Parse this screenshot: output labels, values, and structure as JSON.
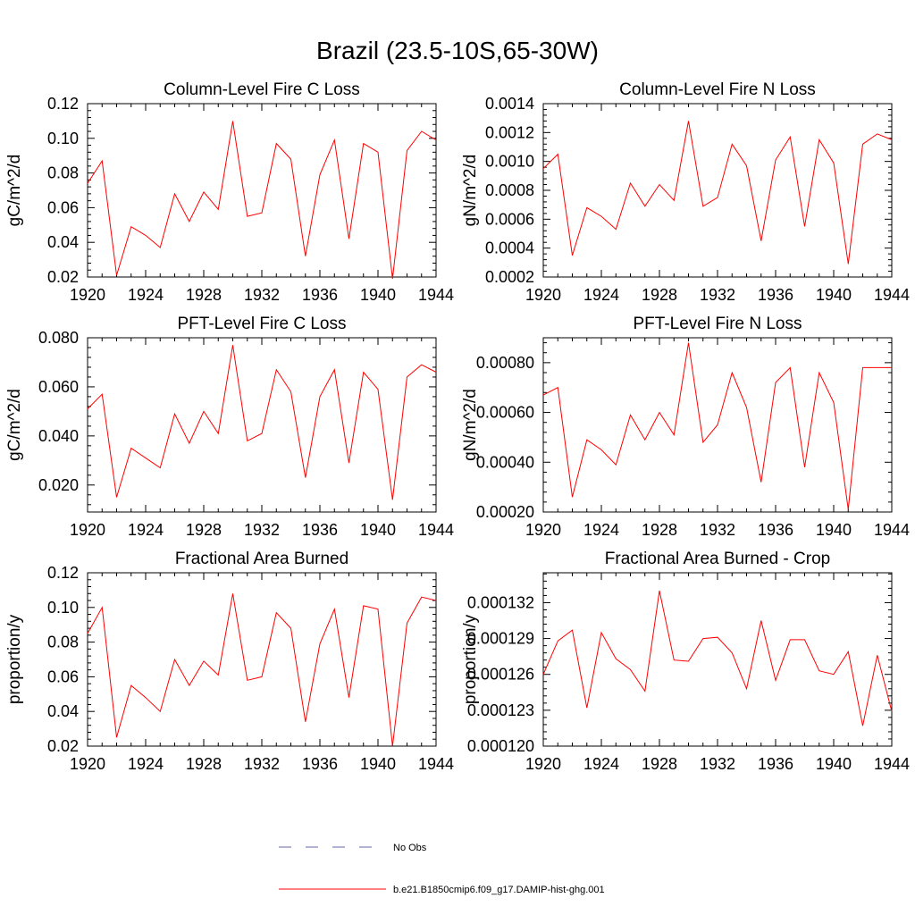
{
  "figure": {
    "title": "Brazil (23.5-10S,65-30W)"
  },
  "legend": [
    {
      "label": "No Obs",
      "color": "#6666aa",
      "dash": true
    },
    {
      "label": "b.e21.B1850cmip6.f09_g17.DAMIP-hist-ghg.001",
      "color": "#ff0000",
      "dash": false
    }
  ],
  "chart_data": [
    {
      "type": "line",
      "title": "Column-Level Fire C Loss",
      "ylabel": "gC/m^2/d",
      "xlim": [
        1920,
        1944
      ],
      "ylim": [
        0.02,
        0.12
      ],
      "xticks": [
        1920,
        1924,
        1928,
        1932,
        1936,
        1940,
        1944
      ],
      "xtick_labels": [
        "1920",
        "1924",
        "1928",
        "1932",
        "1936",
        "1940",
        "1944"
      ],
      "yticks": [
        0.02,
        0.04,
        0.06,
        0.08,
        0.1,
        0.12
      ],
      "ytick_labels": [
        "0.02",
        "0.04",
        "0.06",
        "0.08",
        "0.10",
        "0.12"
      ],
      "x": [
        1920,
        1921,
        1922,
        1923,
        1924,
        1925,
        1926,
        1927,
        1928,
        1929,
        1930,
        1931,
        1932,
        1933,
        1934,
        1935,
        1936,
        1937,
        1938,
        1939,
        1940,
        1941,
        1942,
        1943,
        1944
      ],
      "series": [
        {
          "name": "b.e21.B1850cmip6.f09_g17.DAMIP-hist-ghg.001",
          "color": "#ff0000",
          "values": [
            0.074,
            0.087,
            0.021,
            0.049,
            0.044,
            0.037,
            0.068,
            0.052,
            0.069,
            0.059,
            0.11,
            0.055,
            0.057,
            0.097,
            0.088,
            0.032,
            0.079,
            0.099,
            0.042,
            0.097,
            0.092,
            0.019,
            0.093,
            0.104,
            0.099
          ]
        }
      ]
    },
    {
      "type": "line",
      "title": "Column-Level Fire N Loss",
      "ylabel": "gN/m^2/d",
      "xlim": [
        1920,
        1944
      ],
      "ylim": [
        0.0002,
        0.0014
      ],
      "xticks": [
        1920,
        1924,
        1928,
        1932,
        1936,
        1940,
        1944
      ],
      "xtick_labels": [
        "1920",
        "1924",
        "1928",
        "1932",
        "1936",
        "1940",
        "1944"
      ],
      "yticks": [
        0.0002,
        0.0004,
        0.0006,
        0.0008,
        0.001,
        0.0012,
        0.0014
      ],
      "ytick_labels": [
        "0.0002",
        "0.0004",
        "0.0006",
        "0.0008",
        "0.0010",
        "0.0012",
        "0.0014"
      ],
      "x": [
        1920,
        1921,
        1922,
        1923,
        1924,
        1925,
        1926,
        1927,
        1928,
        1929,
        1930,
        1931,
        1932,
        1933,
        1934,
        1935,
        1936,
        1937,
        1938,
        1939,
        1940,
        1941,
        1942,
        1943,
        1944
      ],
      "series": [
        {
          "name": "b.e21.B1850cmip6.f09_g17.DAMIP-hist-ghg.001",
          "color": "#ff0000",
          "values": [
            0.00095,
            0.00105,
            0.00035,
            0.00068,
            0.00062,
            0.00053,
            0.00085,
            0.00069,
            0.00084,
            0.00073,
            0.00128,
            0.00069,
            0.00075,
            0.00112,
            0.00097,
            0.00045,
            0.00101,
            0.00117,
            0.00055,
            0.00115,
            0.00099,
            0.00029,
            0.00112,
            0.00119,
            0.00115
          ]
        }
      ]
    },
    {
      "type": "line",
      "title": "PFT-Level Fire C Loss",
      "ylabel": "gC/m^2/d",
      "xlim": [
        1920,
        1944
      ],
      "ylim": [
        0.009,
        0.08
      ],
      "xticks": [
        1920,
        1924,
        1928,
        1932,
        1936,
        1940,
        1944
      ],
      "xtick_labels": [
        "1920",
        "1924",
        "1928",
        "1932",
        "1936",
        "1940",
        "1944"
      ],
      "yticks": [
        0.02,
        0.04,
        0.06,
        0.08
      ],
      "ytick_labels": [
        "0.020",
        "0.040",
        "0.060",
        "0.080"
      ],
      "x": [
        1920,
        1921,
        1922,
        1923,
        1924,
        1925,
        1926,
        1927,
        1928,
        1929,
        1930,
        1931,
        1932,
        1933,
        1934,
        1935,
        1936,
        1937,
        1938,
        1939,
        1940,
        1941,
        1942,
        1943,
        1944
      ],
      "series": [
        {
          "name": "b.e21.B1850cmip6.f09_g17.DAMIP-hist-ghg.001",
          "color": "#ff0000",
          "values": [
            0.051,
            0.057,
            0.015,
            0.035,
            0.031,
            0.027,
            0.049,
            0.037,
            0.05,
            0.041,
            0.077,
            0.038,
            0.041,
            0.067,
            0.058,
            0.023,
            0.056,
            0.067,
            0.029,
            0.066,
            0.059,
            0.014,
            0.064,
            0.069,
            0.066
          ]
        }
      ]
    },
    {
      "type": "line",
      "title": "PFT-Level Fire N Loss",
      "ylabel": "gN/m^2/d",
      "xlim": [
        1920,
        1944
      ],
      "ylim": [
        0.0002,
        0.0009
      ],
      "xticks": [
        1920,
        1924,
        1928,
        1932,
        1936,
        1940,
        1944
      ],
      "xtick_labels": [
        "1920",
        "1924",
        "1928",
        "1932",
        "1936",
        "1940",
        "1944"
      ],
      "yticks": [
        0.0002,
        0.0004,
        0.0006,
        0.0008
      ],
      "ytick_labels": [
        "0.00020",
        "0.00040",
        "0.00060",
        "0.00080"
      ],
      "x": [
        1920,
        1921,
        1922,
        1923,
        1924,
        1925,
        1926,
        1927,
        1928,
        1929,
        1930,
        1931,
        1932,
        1933,
        1934,
        1935,
        1936,
        1937,
        1938,
        1939,
        1940,
        1941,
        1942,
        1943,
        1944
      ],
      "series": [
        {
          "name": "b.e21.B1850cmip6.f09_g17.DAMIP-hist-ghg.001",
          "color": "#ff0000",
          "values": [
            0.00067,
            0.0007,
            0.00026,
            0.00049,
            0.00045,
            0.00039,
            0.00059,
            0.00049,
            0.0006,
            0.00051,
            0.00088,
            0.00048,
            0.00055,
            0.00076,
            0.00062,
            0.00032,
            0.00072,
            0.00078,
            0.00038,
            0.00076,
            0.00064,
            0.00021,
            0.00078,
            0.00078,
            0.00078
          ]
        }
      ]
    },
    {
      "type": "line",
      "title": "Fractional Area Burned",
      "ylabel": "proportion/y",
      "xlim": [
        1920,
        1944
      ],
      "ylim": [
        0.02,
        0.12
      ],
      "xticks": [
        1920,
        1924,
        1928,
        1932,
        1936,
        1940,
        1944
      ],
      "xtick_labels": [
        "1920",
        "1924",
        "1928",
        "1932",
        "1936",
        "1940",
        "1944"
      ],
      "yticks": [
        0.02,
        0.04,
        0.06,
        0.08,
        0.1,
        0.12
      ],
      "ytick_labels": [
        "0.02",
        "0.04",
        "0.06",
        "0.08",
        "0.10",
        "0.12"
      ],
      "x": [
        1920,
        1921,
        1922,
        1923,
        1924,
        1925,
        1926,
        1927,
        1928,
        1929,
        1930,
        1931,
        1932,
        1933,
        1934,
        1935,
        1936,
        1937,
        1938,
        1939,
        1940,
        1941,
        1942,
        1943,
        1944
      ],
      "series": [
        {
          "name": "b.e21.B1850cmip6.f09_g17.DAMIP-hist-ghg.001",
          "color": "#ff0000",
          "values": [
            0.085,
            0.1,
            0.025,
            0.055,
            0.048,
            0.04,
            0.07,
            0.055,
            0.069,
            0.061,
            0.108,
            0.058,
            0.06,
            0.097,
            0.088,
            0.034,
            0.079,
            0.099,
            0.048,
            0.101,
            0.099,
            0.02,
            0.091,
            0.106,
            0.104
          ]
        }
      ]
    },
    {
      "type": "line",
      "title": "Fractional Area Burned - Crop",
      "ylabel": "proportion/y",
      "xlim": [
        1920,
        1944
      ],
      "ylim": [
        0.00012,
        0.0001345
      ],
      "xticks": [
        1920,
        1924,
        1928,
        1932,
        1936,
        1940,
        1944
      ],
      "xtick_labels": [
        "1920",
        "1924",
        "1928",
        "1932",
        "1936",
        "1940",
        "1944"
      ],
      "yticks": [
        0.00012,
        0.000123,
        0.000126,
        0.000129,
        0.000132
      ],
      "ytick_labels": [
        "0.000120",
        "0.000123",
        "0.000126",
        "0.000129",
        "0.000132"
      ],
      "x": [
        1920,
        1921,
        1922,
        1923,
        1924,
        1925,
        1926,
        1927,
        1928,
        1929,
        1930,
        1931,
        1932,
        1933,
        1934,
        1935,
        1936,
        1937,
        1938,
        1939,
        1940,
        1941,
        1942,
        1943,
        1944
      ],
      "series": [
        {
          "name": "b.e21.B1850cmip6.f09_g17.DAMIP-hist-ghg.001",
          "color": "#ff0000",
          "values": [
            0.000126,
            0.0001288,
            0.0001297,
            0.0001232,
            0.0001295,
            0.0001273,
            0.0001264,
            0.0001246,
            0.000133,
            0.0001272,
            0.0001271,
            0.000129,
            0.0001291,
            0.0001278,
            0.0001248,
            0.0001305,
            0.0001255,
            0.0001289,
            0.0001289,
            0.0001263,
            0.000126,
            0.0001279,
            0.0001217,
            0.0001276,
            0.0001229
          ]
        }
      ]
    }
  ]
}
